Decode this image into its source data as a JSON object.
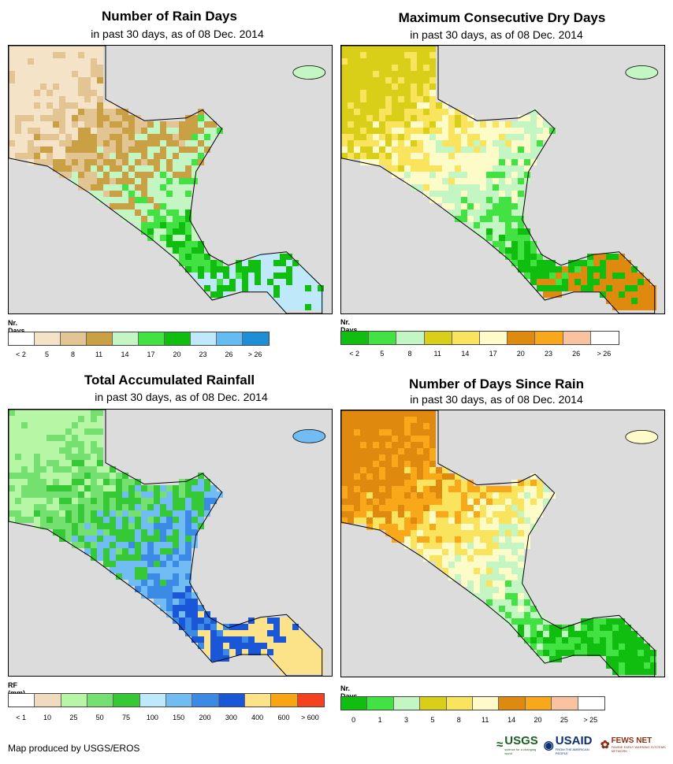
{
  "panels": [
    {
      "title": "Number of Rain Days",
      "subtitle": "in past 30 days, as of 08 Dec. 2014",
      "legend_label": "Nr. Days",
      "legend_colors": [
        "#ffffff",
        "#f5e3c7",
        "#e2c592",
        "#c9a044",
        "#c3f6c3",
        "#41e241",
        "#10be10",
        "#bfe9fb",
        "#63bdf2",
        "#1e8fd6"
      ],
      "legend_ticks": [
        "< 2",
        "5",
        "8",
        "11",
        "14",
        "17",
        "20",
        "23",
        "26",
        "> 26"
      ],
      "map_colors": [
        "#f5e3c7",
        "#e2c592",
        "#c9a044",
        "#c3f6c3",
        "#41e241",
        "#10be10",
        "#bfe9fb"
      ]
    },
    {
      "title": "Maximum Consecutive Dry Days",
      "subtitle": "in past 30 days, as of 08 Dec. 2014",
      "legend_label": "Nr. Days",
      "legend_colors": [
        "#10be10",
        "#41e241",
        "#c3f6c3",
        "#d9cf18",
        "#fbe45d",
        "#fdfbc7",
        "#df8a0e",
        "#f9a81a",
        "#f8c39e",
        "#ffffff"
      ],
      "legend_ticks": [
        "< 2",
        "5",
        "8",
        "11",
        "14",
        "17",
        "20",
        "23",
        "26",
        "> 26"
      ],
      "map_colors": [
        "#d9cf18",
        "#fbe45d",
        "#fdfbc7",
        "#c3f6c3",
        "#41e241",
        "#10be10",
        "#df8a0e"
      ]
    },
    {
      "title": "Total Accumulated Rainfall",
      "subtitle": "in past 30 days, as of 08 Dec. 2014",
      "legend_label": "RF (mm)",
      "legend_colors": [
        "#ffffff",
        "#f0dbbf",
        "#b7f6a4",
        "#74e070",
        "#36c936",
        "#bde9fb",
        "#71bdf3",
        "#3a8ae6",
        "#1a56d8",
        "#fce289",
        "#f8a511",
        "#f5411d"
      ],
      "legend_ticks": [
        "< 1",
        "10",
        "25",
        "50",
        "75",
        "100",
        "150",
        "200",
        "300",
        "400",
        "600",
        "> 600"
      ],
      "map_colors": [
        "#b7f6a4",
        "#74e070",
        "#36c936",
        "#71bdf3",
        "#3a8ae6",
        "#1a56d8",
        "#fce289"
      ]
    },
    {
      "title": "Number of Days Since Rain",
      "subtitle": "in past 30 days, as of 08 Dec. 2014",
      "legend_label": "Nr. Days",
      "legend_colors": [
        "#10be10",
        "#41e241",
        "#c3f6c3",
        "#d9cf18",
        "#fbe45d",
        "#fdfbc7",
        "#df8a0e",
        "#f9a81a",
        "#f8c39e",
        "#ffffff"
      ],
      "legend_ticks": [
        "0",
        "1",
        "3",
        "5",
        "8",
        "11",
        "14",
        "20",
        "25",
        "> 25"
      ],
      "map_colors": [
        "#df8a0e",
        "#f9a81a",
        "#fbe45d",
        "#fdfbc7",
        "#c3f6c3",
        "#41e241",
        "#10be10"
      ]
    }
  ],
  "footer": "Map produced by USGS/EROS",
  "logos": {
    "usgs": "USGS",
    "usgs_tag": "science for a changing world",
    "usaid": "USAID",
    "usaid_tag": "FROM THE AMERICAN PEOPLE",
    "fews": "FEWS NET",
    "fews_tag": "FAMINE EARLY WARNING SYSTEMS NETWORK"
  }
}
